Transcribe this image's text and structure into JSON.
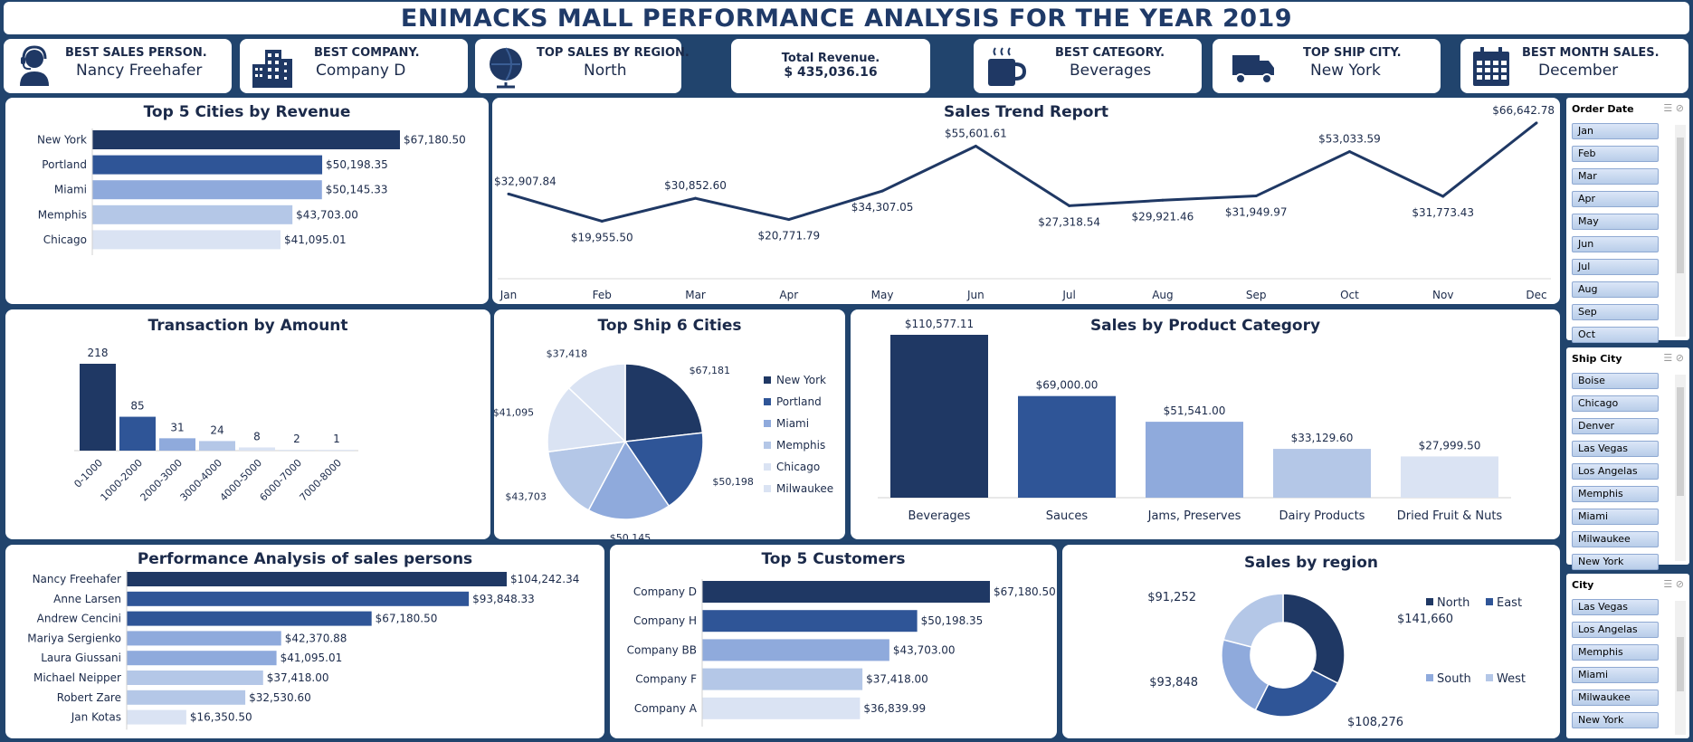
{
  "title": "ENIMACKS MALL PERFORMANCE ANALYSIS FOR THE YEAR 2019",
  "kpis": {
    "best_sales_person": {
      "label": "BEST SALES PERSON.",
      "value": "Nancy Freehafer"
    },
    "best_company": {
      "label": "BEST  COMPANY.",
      "value": "Company D"
    },
    "top_region": {
      "label": "TOP SALES BY REGION.",
      "value": "North"
    },
    "total_revenue": {
      "label": "Total Revenue.",
      "value": "$ 435,036.16"
    },
    "best_category": {
      "label": "BEST CATEGORY.",
      "value": "Beverages"
    },
    "top_ship_city": {
      "label": "TOP SHIP CITY.",
      "value": "New York"
    },
    "best_month": {
      "label": "BEST MONTH SALES.",
      "value": "December"
    }
  },
  "colors": {
    "navy": "#1f3864",
    "blue": "#2f5597",
    "mid": "#8faadc",
    "light": "#b4c7e7",
    "pale": "#dae3f3",
    "background": "#21446d"
  },
  "chart_data": [
    {
      "id": "top-cities",
      "type": "bar",
      "orientation": "horizontal",
      "title": "Top 5 Cities by Revenue",
      "categories": [
        "New York",
        "Portland",
        "Miami",
        "Memphis",
        "Chicago"
      ],
      "values": [
        67180.5,
        50198.35,
        50145.33,
        43703.0,
        41095.01
      ],
      "labels": [
        "$67,180.50",
        "$50,198.35",
        "$50,145.33",
        "$43,703.00",
        "$41,095.01"
      ]
    },
    {
      "id": "sales-trend",
      "type": "line",
      "title": "Sales Trend Report",
      "categories": [
        "Jan",
        "Feb",
        "Mar",
        "Apr",
        "May",
        "Jun",
        "Jul",
        "Aug",
        "Sep",
        "Oct",
        "Nov",
        "Dec"
      ],
      "values": [
        32907.84,
        19955.5,
        30852.6,
        20771.79,
        34307.05,
        55601.61,
        27318.54,
        29921.46,
        31949.97,
        53033.59,
        31773.43,
        66642.78
      ],
      "labels": [
        "$32,907.84",
        "$19,955.50",
        "$30,852.60",
        "$20,771.79",
        "$34,307.05",
        "$55,601.61",
        "$27,318.54",
        "$29,921.46",
        "$31,949.97",
        "$53,033.59",
        "$31,773.43",
        "$66,642.78"
      ]
    },
    {
      "id": "transactions",
      "type": "bar",
      "title": "Transaction by Amount",
      "categories": [
        "0-1000",
        "1000-2000",
        "2000-3000",
        "3000-4000",
        "4000-5000",
        "6000-7000",
        "7000-8000"
      ],
      "values": [
        218,
        85,
        31,
        24,
        8,
        2,
        1
      ]
    },
    {
      "id": "ship-cities",
      "type": "pie",
      "title": "Top Ship 6 Cities",
      "categories": [
        "New York",
        "Portland",
        "Miami",
        "Memphis",
        "Chicago",
        "Milwaukee"
      ],
      "values": [
        67181,
        50198,
        50145,
        43703,
        41095,
        37418
      ],
      "labels": [
        "$67,181",
        "$50,198",
        "$50,145",
        "$43,703",
        "$41,095",
        "$37,418"
      ],
      "legend": "right"
    },
    {
      "id": "product-category",
      "type": "bar",
      "title": "Sales by Product Category",
      "categories": [
        "Beverages",
        "Sauces",
        "Jams, Preserves",
        "Dairy Products",
        "Dried Fruit & Nuts"
      ],
      "values": [
        110577.11,
        69000.0,
        51541.0,
        33129.6,
        27999.5
      ],
      "labels": [
        "$110,577.11",
        "$69,000.00",
        "$51,541.00",
        "$33,129.60",
        "$27,999.50"
      ]
    },
    {
      "id": "sales-persons",
      "type": "bar",
      "orientation": "horizontal",
      "title": "Performance Analysis of sales persons",
      "categories": [
        "Nancy Freehafer",
        "Anne Larsen",
        "Andrew Cencini",
        "Mariya Sergienko",
        "Laura Giussani",
        "Michael Neipper",
        "Robert Zare",
        "Jan Kotas"
      ],
      "values": [
        104242.34,
        93848.33,
        67180.5,
        42370.88,
        41095.01,
        37418.0,
        32530.6,
        16350.5
      ],
      "labels": [
        "$104,242.34",
        "$93,848.33",
        "$67,180.50",
        "$42,370.88",
        "$41,095.01",
        "$37,418.00",
        "$32,530.60",
        "$16,350.50"
      ]
    },
    {
      "id": "top-customers",
      "type": "bar",
      "orientation": "horizontal",
      "title": "Top 5 Customers",
      "categories": [
        "Company D",
        "Company H",
        "Company BB",
        "Company F",
        "Company A"
      ],
      "values": [
        67180.5,
        50198.35,
        43703.0,
        37418.0,
        36839.99
      ],
      "labels": [
        "$67,180.50",
        "$50,198.35",
        "$43,703.00",
        "$37,418.00",
        "$36,839.99"
      ]
    },
    {
      "id": "sales-region",
      "type": "pie",
      "subtype": "doughnut",
      "title": "Sales by region",
      "categories": [
        "North",
        "East",
        "South",
        "West"
      ],
      "values": [
        141660,
        108276,
        93848,
        91252
      ],
      "labels": [
        "$141,660",
        "$108,276",
        "$93,848",
        "$91,252"
      ],
      "legend": "right"
    }
  ],
  "slicers": {
    "order_date": {
      "header": "Order Date",
      "items": [
        "Jan",
        "Feb",
        "Mar",
        "Apr",
        "May",
        "Jun",
        "Jul",
        "Aug",
        "Sep",
        "Oct"
      ]
    },
    "ship_city": {
      "header": "Ship City",
      "items": [
        "Boise",
        "Chicago",
        "Denver",
        "Las Vegas",
        "Los Angelas",
        "Memphis",
        "Miami",
        "Milwaukee",
        "New York"
      ]
    },
    "city": {
      "header": "City",
      "items": [
        "Las Vegas",
        "Los Angelas",
        "Memphis",
        "Miami",
        "Milwaukee",
        "New York"
      ]
    }
  }
}
